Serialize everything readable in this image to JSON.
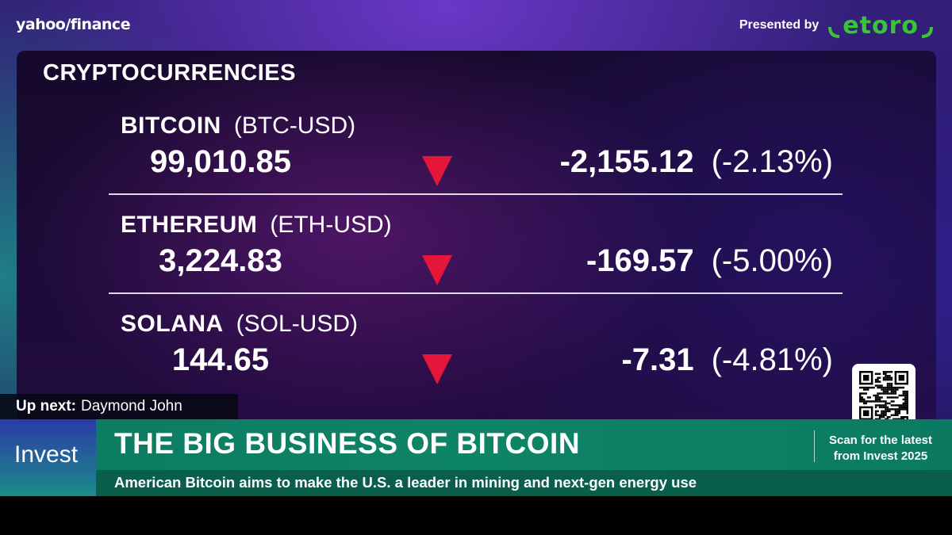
{
  "header": {
    "logo_text": "yahoo/finance",
    "presented_label": "Presented by",
    "sponsor_name": "etoro",
    "sponsor_color": "#39c535"
  },
  "panel": {
    "title": "CRYPTOCURRENCIES",
    "rows": [
      {
        "name": "BITCOIN",
        "ticker": "(BTC-USD)",
        "price": "99,010.85",
        "direction": "down",
        "change": "-2,155.12",
        "change_pct": "(-2.13%)"
      },
      {
        "name": "ETHEREUM",
        "ticker": "(ETH-USD)",
        "price": "3,224.83",
        "direction": "down",
        "change": "-169.57",
        "change_pct": "(-5.00%)"
      },
      {
        "name": "SOLANA",
        "ticker": "(SOL-USD)",
        "price": "144.65",
        "direction": "down",
        "change": "-7.31",
        "change_pct": "(-4.81%)"
      }
    ],
    "down_color": "#e4173b"
  },
  "up_next": {
    "label": "Up next:",
    "name": "Daymond John"
  },
  "lower_third": {
    "section": "Invest",
    "headline": "THE BIG BUSINESS OF BITCOIN",
    "subline": "American Bitcoin aims to make the U.S. a leader in mining and next-gen energy use",
    "scan_line1": "Scan for the latest",
    "scan_line2": "from Invest 2025"
  }
}
